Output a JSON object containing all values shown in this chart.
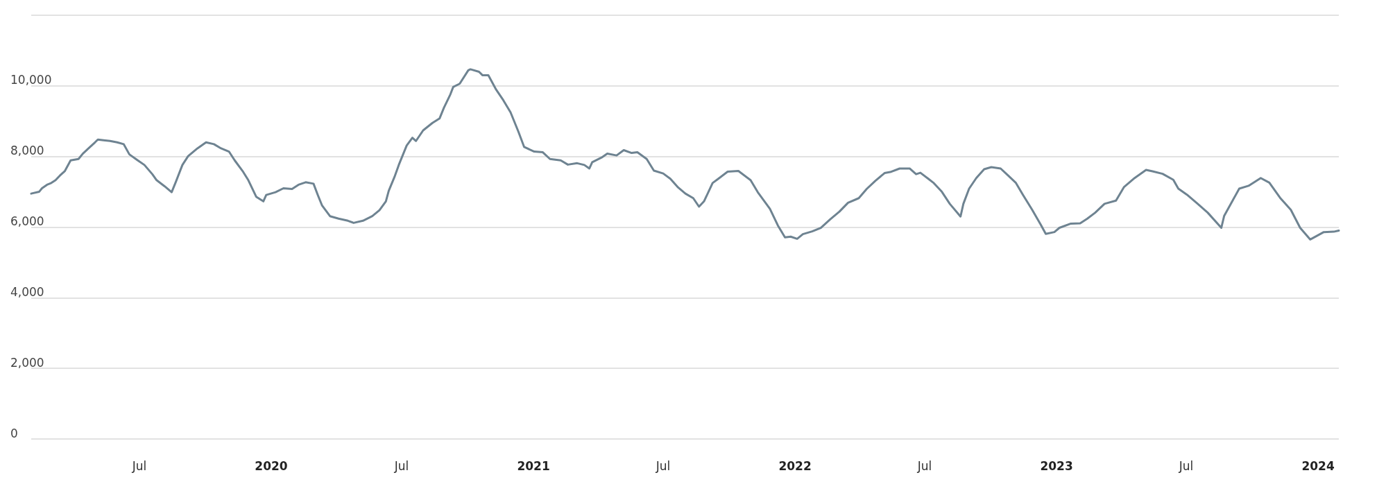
{
  "chart_data": {
    "type": "line",
    "color": "#6e8391",
    "grid": "y",
    "marker": "none",
    "line_style": "solid",
    "xlim": [
      "2019-01-31",
      "2024-01-30"
    ],
    "xticks": [
      {
        "value": "2019-07-01",
        "label": "Jul"
      },
      {
        "value": "2020-01-01",
        "label": "2020"
      },
      {
        "value": "2020-07-01",
        "label": "Jul"
      },
      {
        "value": "2021-01-01",
        "label": "2021"
      },
      {
        "value": "2021-07-01",
        "label": "Jul"
      },
      {
        "value": "2022-01-01",
        "label": "2022"
      },
      {
        "value": "2022-07-01",
        "label": "Jul"
      },
      {
        "value": "2023-01-01",
        "label": "2023"
      },
      {
        "value": "2023-07-01",
        "label": "Jul"
      },
      {
        "value": "2024-01-01",
        "label": "2024"
      }
    ],
    "ylim": [
      0,
      12000
    ],
    "yticks": [
      0,
      {
        "value": 2000,
        "label": "2,000"
      },
      {
        "value": 4000,
        "label": "4,000"
      },
      {
        "value": 6000,
        "label": "6,000"
      },
      {
        "value": 8000,
        "label": "8,000"
      },
      {
        "value": 10000,
        "label": "10,000"
      },
      {
        "value": 12000,
        "label": null
      }
    ],
    "x": [
      "2019-01-31",
      "2019-02-11",
      "2019-02-15",
      "2019-02-22",
      "2019-02-28",
      "2019-03-06",
      "2019-03-12",
      "2019-03-19",
      "2019-03-27",
      "2019-04-07",
      "2019-04-13",
      "2019-04-21",
      "2019-04-30",
      "2019-05-04",
      "2019-05-12",
      "2019-05-21",
      "2019-05-31",
      "2019-06-09",
      "2019-06-17",
      "2019-06-28",
      "2019-07-08",
      "2019-07-19",
      "2019-07-25",
      "2019-08-05",
      "2019-08-15",
      "2019-08-21",
      "2019-08-30",
      "2019-09-07",
      "2019-09-20",
      "2019-10-02",
      "2019-10-13",
      "2019-10-23",
      "2019-11-03",
      "2019-11-11",
      "2019-11-22",
      "2019-11-30",
      "2019-12-11",
      "2019-12-21",
      "2019-12-25",
      "2020-01-07",
      "2020-01-18",
      "2020-01-30",
      "2020-02-08",
      "2020-02-18",
      "2020-02-29",
      "2020-03-06",
      "2020-03-12",
      "2020-03-23",
      "2020-04-04",
      "2020-04-17",
      "2020-04-25",
      "2020-05-08",
      "2020-05-21",
      "2020-05-31",
      "2020-06-09",
      "2020-06-13",
      "2020-06-21",
      "2020-06-27",
      "2020-07-08",
      "2020-07-16",
      "2020-07-21",
      "2020-07-31",
      "2020-08-13",
      "2020-08-23",
      "2020-08-29",
      "2020-09-07",
      "2020-09-11",
      "2020-09-20",
      "2020-10-02",
      "2020-10-05",
      "2020-10-17",
      "2020-10-22",
      "2020-10-30",
      "2020-11-10",
      "2020-11-20",
      "2020-11-30",
      "2020-12-11",
      "2020-12-19",
      "2021-01-02",
      "2021-01-14",
      "2021-01-24",
      "2021-02-08",
      "2021-02-18",
      "2021-03-03",
      "2021-03-13",
      "2021-03-20",
      "2021-03-24",
      "2021-04-06",
      "2021-04-14",
      "2021-04-27",
      "2021-05-07",
      "2021-05-18",
      "2021-05-26",
      "2021-06-08",
      "2021-06-18",
      "2021-07-01",
      "2021-07-11",
      "2021-07-22",
      "2021-08-01",
      "2021-08-12",
      "2021-08-20",
      "2021-08-27",
      "2021-09-08",
      "2021-09-16",
      "2021-09-29",
      "2021-10-14",
      "2021-10-31",
      "2021-11-10",
      "2021-11-27",
      "2021-12-08",
      "2021-12-18",
      "2021-12-26",
      "2022-01-04",
      "2022-01-12",
      "2022-01-25",
      "2022-02-06",
      "2022-02-19",
      "2022-03-04",
      "2022-03-16",
      "2022-03-31",
      "2022-04-11",
      "2022-04-23",
      "2022-05-06",
      "2022-05-14",
      "2022-05-27",
      "2022-06-10",
      "2022-06-19",
      "2022-06-25",
      "2022-07-06",
      "2022-07-13",
      "2022-07-25",
      "2022-08-05",
      "2022-08-20",
      "2022-08-24",
      "2022-09-01",
      "2022-09-11",
      "2022-09-22",
      "2022-10-02",
      "2022-10-15",
      "2022-10-25",
      "2022-11-05",
      "2022-11-15",
      "2022-11-28",
      "2022-12-10",
      "2022-12-17",
      "2022-12-29",
      "2023-01-05",
      "2023-01-21",
      "2023-02-03",
      "2023-02-13",
      "2023-02-24",
      "2023-03-09",
      "2023-03-25",
      "2023-04-05",
      "2023-04-20",
      "2023-05-06",
      "2023-05-15",
      "2023-05-29",
      "2023-06-13",
      "2023-06-20",
      "2023-07-02",
      "2023-07-17",
      "2023-07-31",
      "2023-08-19",
      "2023-08-23",
      "2023-09-13",
      "2023-09-26",
      "2023-10-13",
      "2023-10-25",
      "2023-11-09",
      "2023-11-24",
      "2023-12-07",
      "2023-12-21",
      "2024-01-09",
      "2024-01-23",
      "2024-01-30"
    ],
    "values": [
      6950,
      7000,
      7100,
      7200,
      7250,
      7330,
      7460,
      7590,
      7890,
      7930,
      8080,
      8230,
      8400,
      8480,
      8460,
      8440,
      8400,
      8350,
      8060,
      7900,
      7760,
      7500,
      7330,
      7160,
      6990,
      7290,
      7760,
      8010,
      8230,
      8400,
      8350,
      8230,
      8140,
      7890,
      7590,
      7330,
      6860,
      6730,
      6910,
      6990,
      7100,
      7080,
      7200,
      7270,
      7230,
      6910,
      6610,
      6310,
      6240,
      6180,
      6120,
      6180,
      6310,
      6480,
      6730,
      7030,
      7420,
      7760,
      8310,
      8530,
      8440,
      8740,
      8950,
      9080,
      9380,
      9760,
      9970,
      10060,
      10440,
      10470,
      10400,
      10300,
      10300,
      9890,
      9590,
      9250,
      8700,
      8270,
      8140,
      8120,
      7930,
      7890,
      7770,
      7810,
      7760,
      7660,
      7840,
      7970,
      8080,
      8030,
      8180,
      8100,
      8120,
      7930,
      7600,
      7520,
      7370,
      7120,
      6950,
      6820,
      6580,
      6730,
      7250,
      7370,
      7570,
      7590,
      7330,
      6990,
      6520,
      6050,
      5710,
      5730,
      5670,
      5800,
      5880,
      5980,
      6220,
      6440,
      6690,
      6820,
      7080,
      7310,
      7530,
      7560,
      7660,
      7660,
      7500,
      7540,
      7370,
      7260,
      7000,
      6660,
      6300,
      6660,
      7090,
      7390,
      7640,
      7700,
      7660,
      7470,
      7260,
      6920,
      6490,
      6070,
      5810,
      5860,
      5980,
      6100,
      6110,
      6240,
      6410,
      6660,
      6750,
      7130,
      7390,
      7620,
      7580,
      7510,
      7340,
      7090,
      6920,
      6660,
      6410,
      5980,
      6320,
      7090,
      7170,
      7390,
      7260,
      6830,
      6490,
      5980,
      5650,
      5860,
      5870,
      5900
    ]
  }
}
